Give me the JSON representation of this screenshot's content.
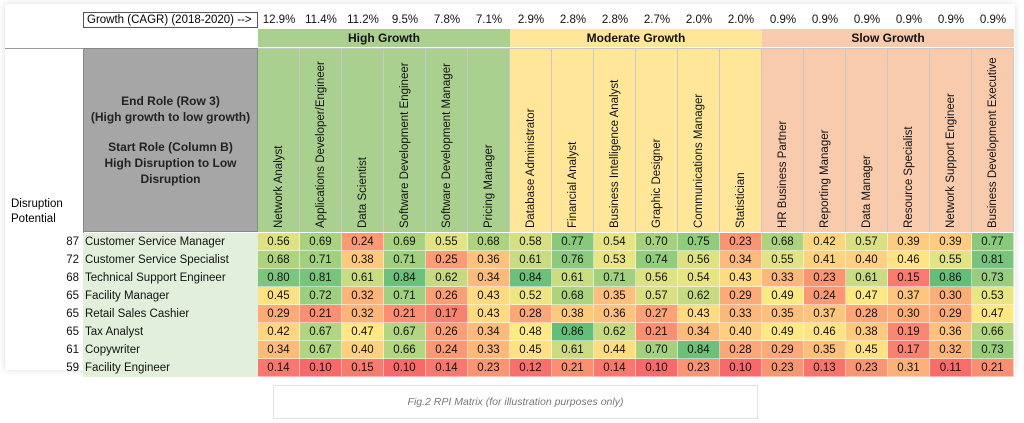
{
  "growth_label": "Growth (CAGR) (2018-2020) -->",
  "growth_rates": [
    "12.9%",
    "11.4%",
    "11.2%",
    "9.5%",
    "7.8%",
    "7.1%",
    "2.9%",
    "2.8%",
    "2.8%",
    "2.7%",
    "2.0%",
    "2.0%",
    "0.9%",
    "0.9%",
    "0.9%",
    "0.9%",
    "0.9%",
    "0.9%"
  ],
  "bands": [
    {
      "label": "High Growth",
      "start": 0,
      "count": 6,
      "color": "#a9d08e"
    },
    {
      "label": "Moderate Growth",
      "start": 6,
      "count": 6,
      "color": "#ffe699"
    },
    {
      "label": "Slow Growth",
      "start": 12,
      "count": 6,
      "color": "#f8cbad"
    }
  ],
  "header_box": {
    "line1": "End Role (Row 3)",
    "line2": "(High growth to low growth)",
    "line3": "Start Role (Column B)",
    "line4": "High Disruption to Low",
    "line5": "Disruption"
  },
  "disruption_label_1": "Disruption",
  "disruption_label_2": "Potential",
  "end_roles": [
    "Network Analyst",
    "Applications Developer/Engineer",
    "Data Scientist",
    "Software Development Engineer",
    "Software Development Manager",
    "Pricing Manager",
    "Database Administrator",
    "Financial Analyst",
    "Business Intelligence Analyst",
    "Graphic Designer",
    "Communications Manager",
    "Statistician",
    "HR Business Partner",
    "Reporting Manager",
    "Data Manager",
    "Resource Specialist",
    "Network Support Engineer",
    "Business Development Executive"
  ],
  "rows": [
    {
      "score": "87",
      "role": "Customer Service Manager",
      "values": [
        "0.56",
        "0.69",
        "0.24",
        "0.69",
        "0.55",
        "0.68",
        "0.58",
        "0.77",
        "0.54",
        "0.70",
        "0.75",
        "0.23",
        "0.68",
        "0.42",
        "0.57",
        "0.39",
        "0.39",
        "0.77"
      ]
    },
    {
      "score": "72",
      "role": "Customer Service Specialist",
      "values": [
        "0.68",
        "0.71",
        "0.38",
        "0.71",
        "0.25",
        "0.36",
        "0.61",
        "0.76",
        "0.53",
        "0.74",
        "0.56",
        "0.34",
        "0.55",
        "0.41",
        "0.40",
        "0.46",
        "0.55",
        "0.81"
      ]
    },
    {
      "score": "68",
      "role": "Technical Support Engineer",
      "values": [
        "0.80",
        "0.81",
        "0.61",
        "0.84",
        "0.62",
        "0.34",
        "0.84",
        "0.61",
        "0.71",
        "0.56",
        "0.54",
        "0.43",
        "0.33",
        "0.23",
        "0.61",
        "0.15",
        "0.86",
        "0.73"
      ]
    },
    {
      "score": "65",
      "role": "Facility Manager",
      "values": [
        "0.45",
        "0.72",
        "0.32",
        "0.71",
        "0.26",
        "0.43",
        "0.52",
        "0.68",
        "0.35",
        "0.57",
        "0.62",
        "0.29",
        "0.49",
        "0.24",
        "0.47",
        "0.37",
        "0.30",
        "0.53"
      ]
    },
    {
      "score": "65",
      "role": "Retail Sales Cashier",
      "values": [
        "0.29",
        "0.21",
        "0.32",
        "0.21",
        "0.17",
        "0.43",
        "0.28",
        "0.38",
        "0.36",
        "0.27",
        "0.43",
        "0.33",
        "0.35",
        "0.37",
        "0.28",
        "0.30",
        "0.29",
        "0.47"
      ]
    },
    {
      "score": "65",
      "role": "Tax Analyst",
      "values": [
        "0.42",
        "0.67",
        "0.47",
        "0.67",
        "0.26",
        "0.34",
        "0.48",
        "0.86",
        "0.62",
        "0.21",
        "0.34",
        "0.40",
        "0.49",
        "0.46",
        "0.38",
        "0.19",
        "0.36",
        "0.66"
      ]
    },
    {
      "score": "61",
      "role": "Copywriter",
      "values": [
        "0.34",
        "0.67",
        "0.40",
        "0.66",
        "0.24",
        "0.33",
        "0.45",
        "0.61",
        "0.44",
        "0.70",
        "0.84",
        "0.28",
        "0.29",
        "0.35",
        "0.45",
        "0.17",
        "0.32",
        "0.73"
      ]
    },
    {
      "score": "59",
      "role": "Facility Engineer",
      "values": [
        "0.14",
        "0.10",
        "0.15",
        "0.10",
        "0.14",
        "0.23",
        "0.12",
        "0.21",
        "0.14",
        "0.10",
        "0.23",
        "0.10",
        "0.23",
        "0.13",
        "0.23",
        "0.31",
        "0.11",
        "0.21"
      ]
    }
  ],
  "row_label_bg": "#e2efda",
  "caption": "Fig.2 RPI Matrix (for illustration purposes only)"
}
